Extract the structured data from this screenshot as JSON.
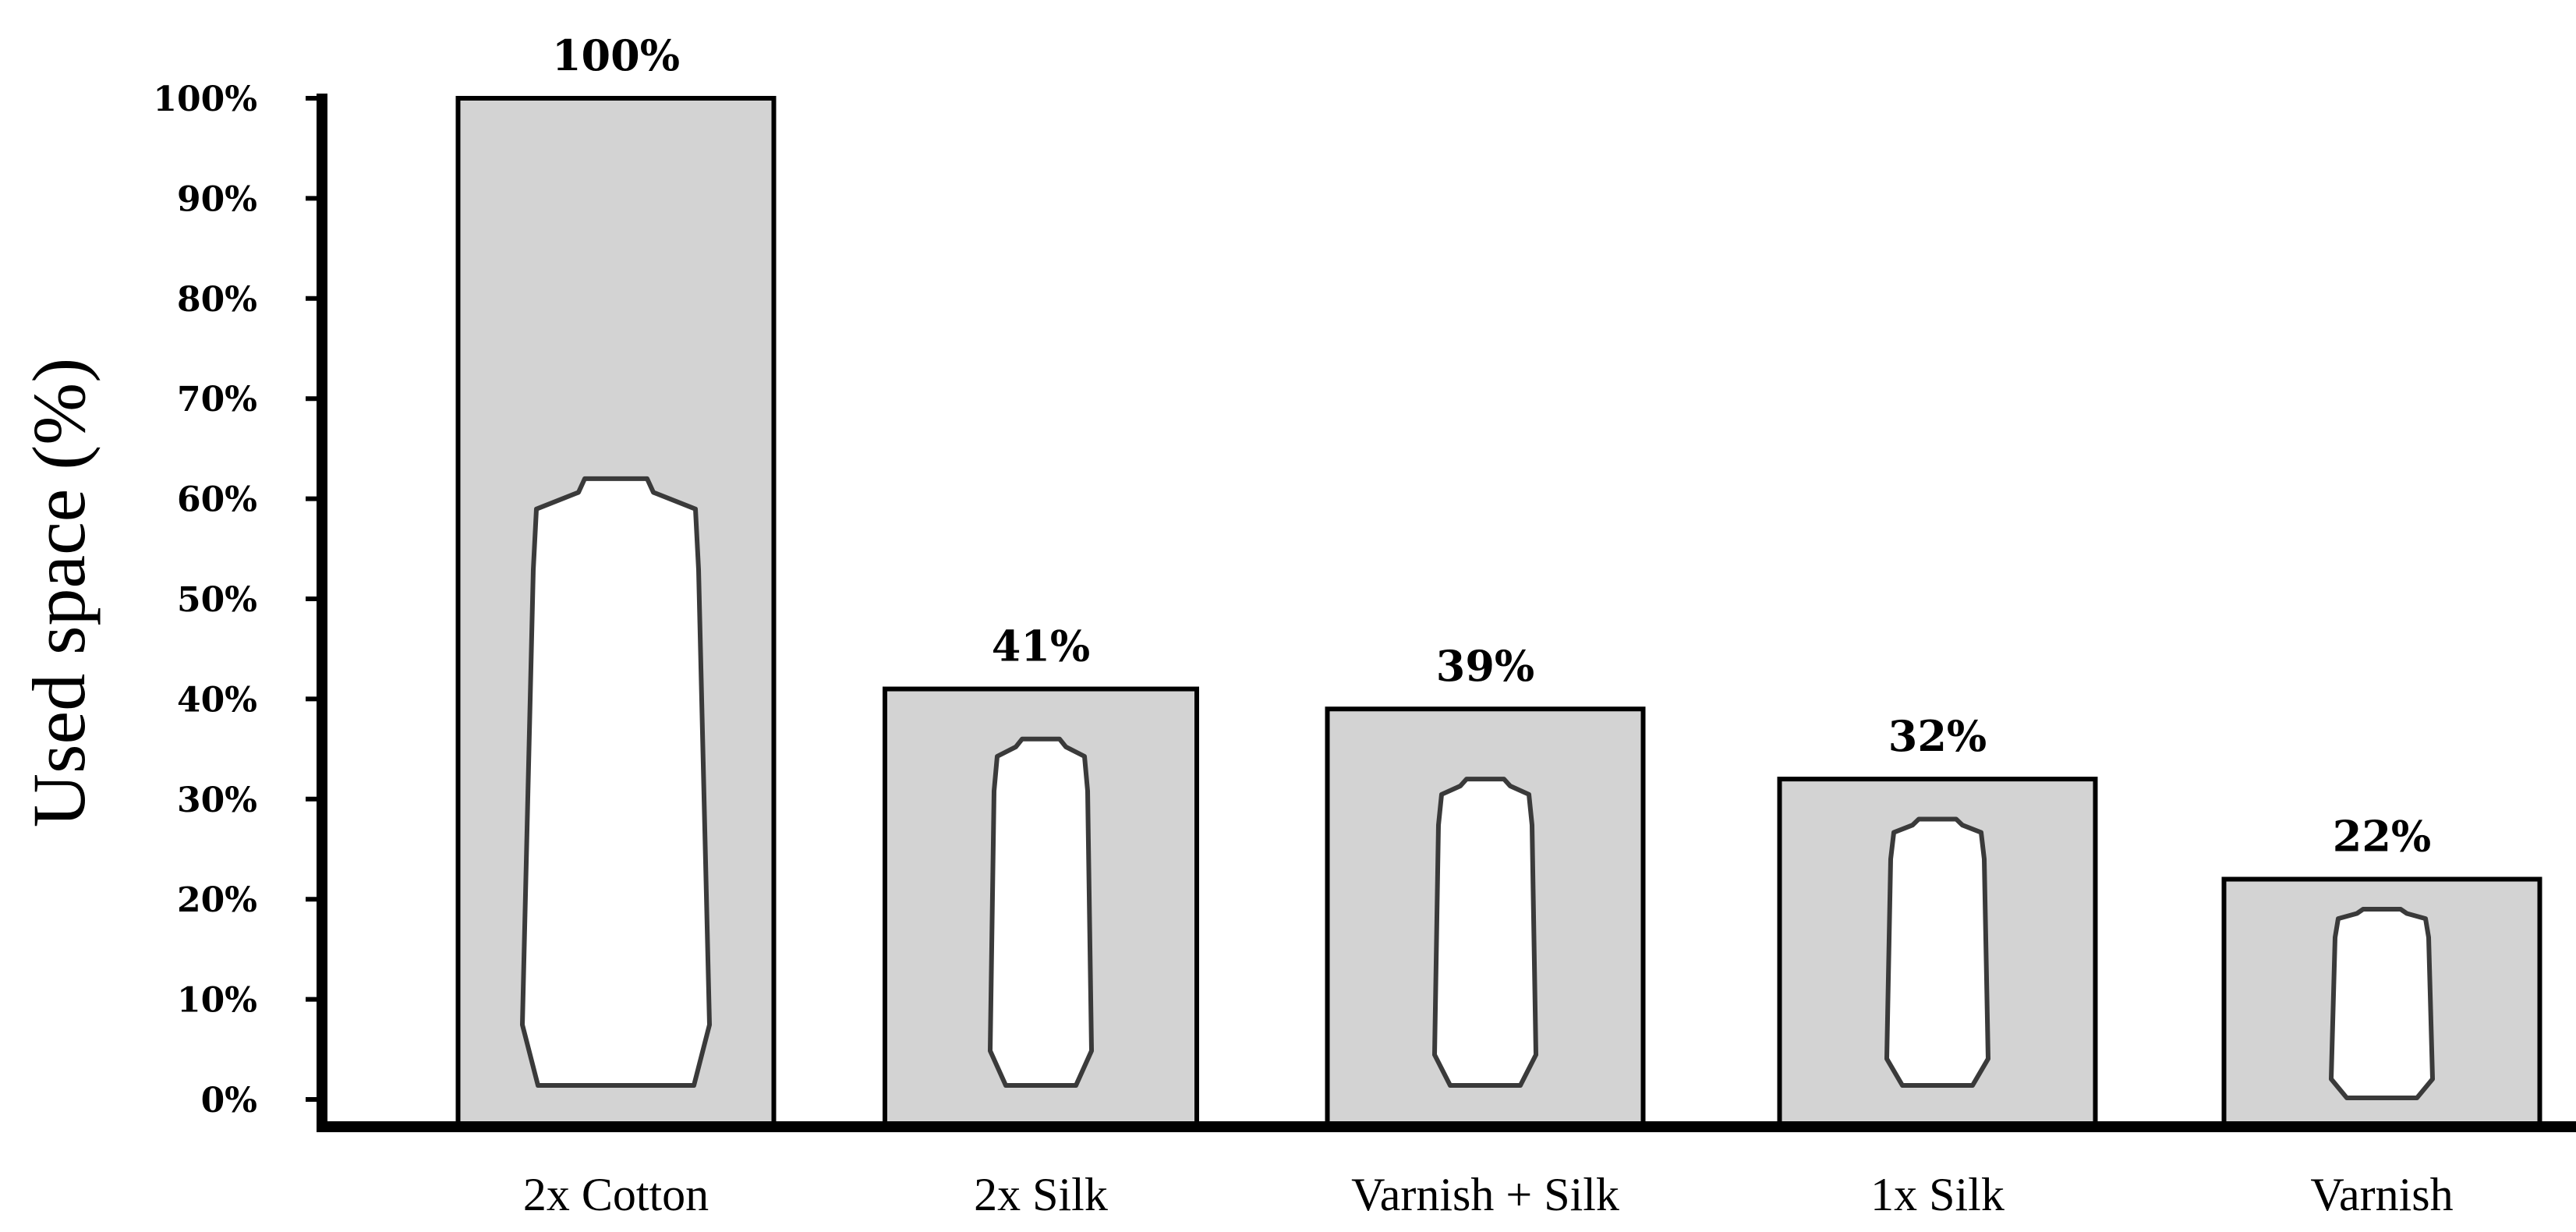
{
  "chart_data": {
    "type": "bar",
    "ylabel": "Used space (%)",
    "xlabel": "",
    "ylim": [
      0,
      100
    ],
    "y_ticks": [
      "0%",
      "10%",
      "20%",
      "30%",
      "40%",
      "50%",
      "60%",
      "70%",
      "80%",
      "90%",
      "100%"
    ],
    "categories": [
      "2x Cotton",
      "2x Silk",
      "Varnish + Silk",
      "1x Silk",
      "Varnish"
    ],
    "values": [
      100,
      41,
      39,
      32,
      22
    ],
    "data_labels": [
      "100%",
      "41%",
      "39%",
      "32%",
      "22%"
    ],
    "bottle_top_values": [
      62,
      36,
      32,
      28,
      19
    ],
    "grid": false,
    "colors": {
      "bar_fill": "#d3d3d3",
      "bar_stroke": "#000000",
      "bottle_fill": "#ffffff"
    }
  }
}
